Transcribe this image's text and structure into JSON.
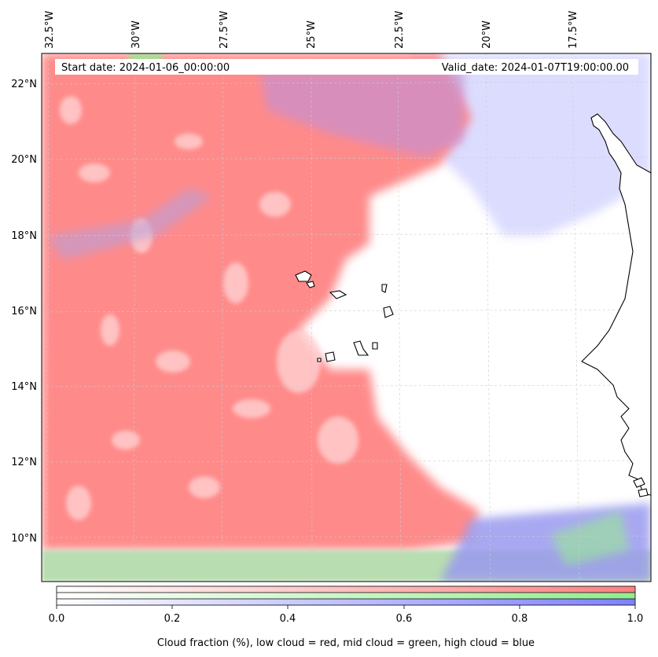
{
  "header": {
    "start_date": "Start date: 2024-01-06_00:00:00",
    "valid_date": "Valid_date: 2024-01-07T19:00:00.00"
  },
  "map": {
    "lon_labels": [
      "32.5°W",
      "30°W",
      "27.5°W",
      "25°W",
      "22.5°W",
      "20°W",
      "17.5°W"
    ],
    "lat_labels": [
      "22°N",
      "20°N",
      "18°N",
      "16°N",
      "14°N",
      "12°N",
      "10°N"
    ],
    "gridlines": "dashed",
    "colors": {
      "low_cloud": "#ff8080",
      "mid_cloud": "#90ee90",
      "high_cloud": "#8080ff",
      "coastline": "#000000"
    }
  },
  "colorbar": {
    "ticks": [
      "0.0",
      "0.2",
      "0.4",
      "0.6",
      "0.8",
      "1.0"
    ],
    "label": "Cloud fraction (%), low cloud = red, mid cloud = green, high cloud = blue"
  }
}
